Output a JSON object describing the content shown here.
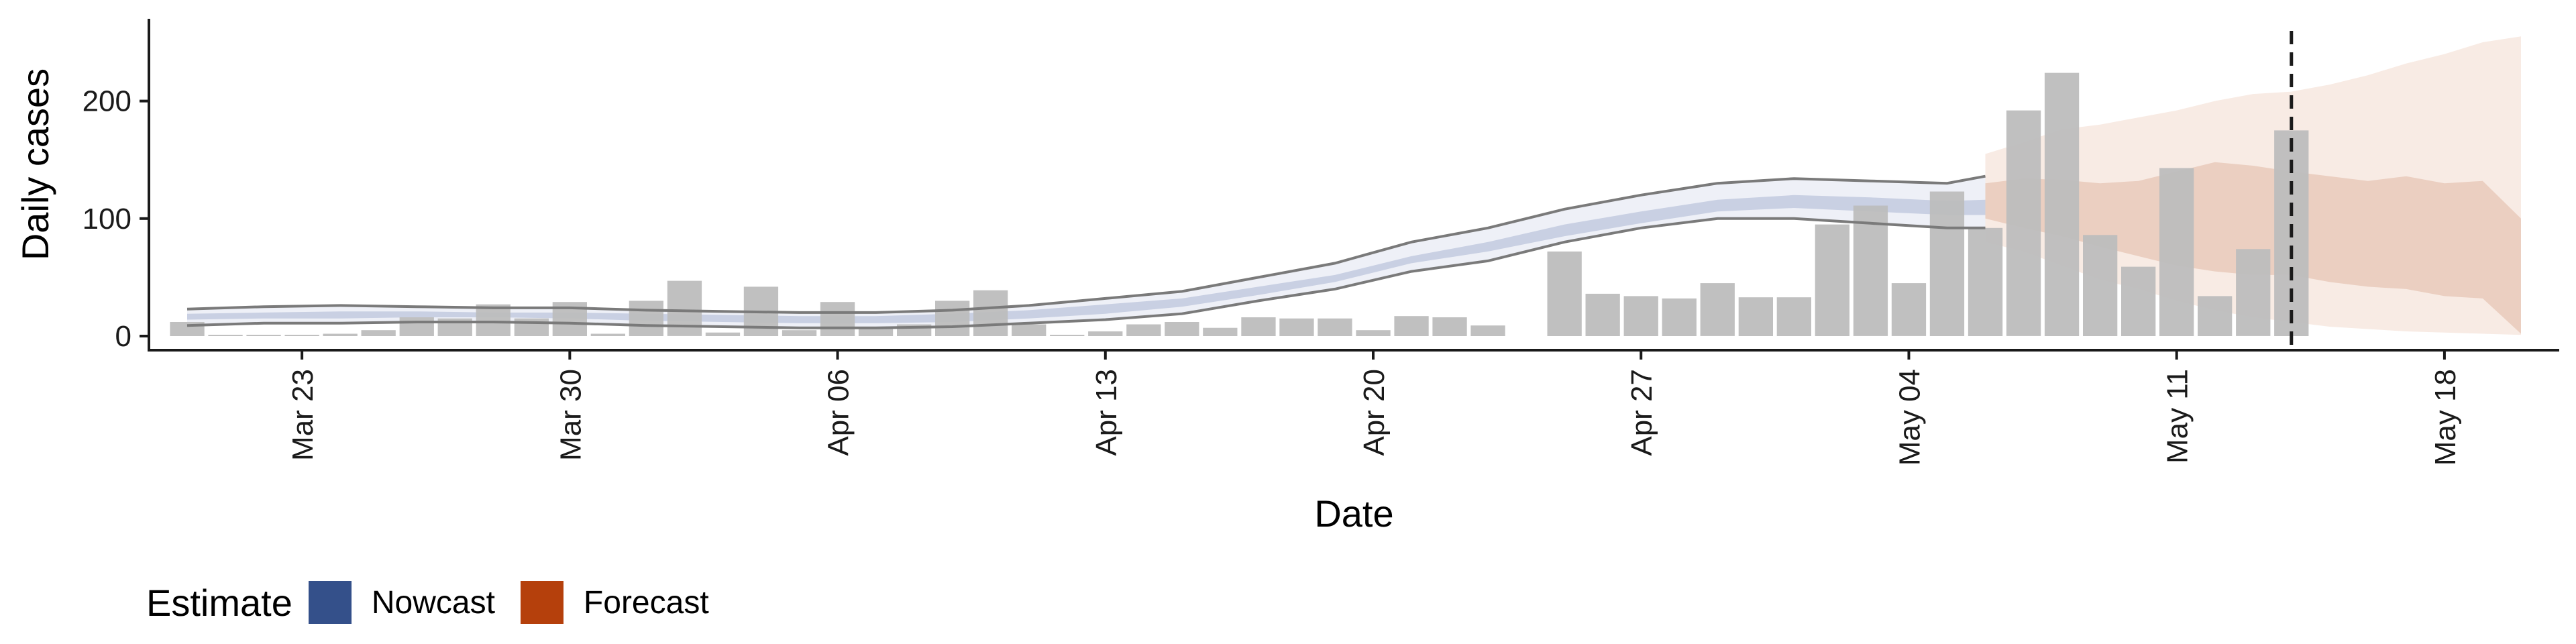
{
  "chart_data": {
    "type": "bar",
    "xlabel": "Date",
    "ylabel": "Daily cases",
    "ylim": [
      -12,
      270
    ],
    "yticks": [
      0,
      100,
      200
    ],
    "x_start": "2020-03-19",
    "x_end": "2020-05-21",
    "xticks": [
      {
        "date": "2020-03-23",
        "label": "Mar 23"
      },
      {
        "date": "2020-03-30",
        "label": "Mar 30"
      },
      {
        "date": "2020-04-06",
        "label": "Apr 06"
      },
      {
        "date": "2020-04-13",
        "label": "Apr 13"
      },
      {
        "date": "2020-04-20",
        "label": "Apr 20"
      },
      {
        "date": "2020-04-27",
        "label": "Apr 27"
      },
      {
        "date": "2020-05-04",
        "label": "May 04"
      },
      {
        "date": "2020-05-11",
        "label": "May 11"
      },
      {
        "date": "2020-05-18",
        "label": "May 18"
      }
    ],
    "reported_cases": [
      {
        "date": "2020-03-20",
        "value": 12
      },
      {
        "date": "2020-03-21",
        "value": 0
      },
      {
        "date": "2020-03-22",
        "value": 1
      },
      {
        "date": "2020-03-23",
        "value": 1
      },
      {
        "date": "2020-03-24",
        "value": 2
      },
      {
        "date": "2020-03-25",
        "value": 5
      },
      {
        "date": "2020-03-26",
        "value": 16
      },
      {
        "date": "2020-03-27",
        "value": 15
      },
      {
        "date": "2020-03-28",
        "value": 27
      },
      {
        "date": "2020-03-29",
        "value": 15
      },
      {
        "date": "2020-03-30",
        "value": 29
      },
      {
        "date": "2020-03-31",
        "value": 2
      },
      {
        "date": "2020-04-01",
        "value": 30
      },
      {
        "date": "2020-04-02",
        "value": 47
      },
      {
        "date": "2020-04-03",
        "value": 3
      },
      {
        "date": "2020-04-04",
        "value": 42
      },
      {
        "date": "2020-04-05",
        "value": 5
      },
      {
        "date": "2020-04-06",
        "value": 29
      },
      {
        "date": "2020-04-07",
        "value": 8
      },
      {
        "date": "2020-04-08",
        "value": 10
      },
      {
        "date": "2020-04-09",
        "value": 30
      },
      {
        "date": "2020-04-10",
        "value": 39
      },
      {
        "date": "2020-04-11",
        "value": 10
      },
      {
        "date": "2020-04-12",
        "value": 1
      },
      {
        "date": "2020-04-13",
        "value": 4
      },
      {
        "date": "2020-04-14",
        "value": 10
      },
      {
        "date": "2020-04-15",
        "value": 12
      },
      {
        "date": "2020-04-16",
        "value": 7
      },
      {
        "date": "2020-04-17",
        "value": 16
      },
      {
        "date": "2020-04-18",
        "value": 15
      },
      {
        "date": "2020-04-19",
        "value": 15
      },
      {
        "date": "2020-04-20",
        "value": 5
      },
      {
        "date": "2020-04-21",
        "value": 17
      },
      {
        "date": "2020-04-22",
        "value": 16
      },
      {
        "date": "2020-04-23",
        "value": 9
      },
      {
        "date": "2020-04-25",
        "value": 72
      },
      {
        "date": "2020-04-26",
        "value": 36
      },
      {
        "date": "2020-04-27",
        "value": 34
      },
      {
        "date": "2020-04-28",
        "value": 32
      },
      {
        "date": "2020-04-29",
        "value": 45
      },
      {
        "date": "2020-04-30",
        "value": 33
      },
      {
        "date": "2020-05-01",
        "value": 33
      },
      {
        "date": "2020-05-02",
        "value": 95
      },
      {
        "date": "2020-05-03",
        "value": 111
      },
      {
        "date": "2020-05-04",
        "value": 45
      },
      {
        "date": "2020-05-05",
        "value": 123
      },
      {
        "date": "2020-05-06",
        "value": 92
      },
      {
        "date": "2020-05-07",
        "value": 192
      },
      {
        "date": "2020-05-08",
        "value": 224
      },
      {
        "date": "2020-05-09",
        "value": 86
      },
      {
        "date": "2020-05-10",
        "value": 59
      },
      {
        "date": "2020-05-11",
        "value": 143
      },
      {
        "date": "2020-05-12",
        "value": 34
      },
      {
        "date": "2020-05-13",
        "value": 74
      },
      {
        "date": "2020-05-14",
        "value": 175
      }
    ],
    "nowcast": {
      "dates": [
        "2020-03-20",
        "2020-03-22",
        "2020-03-24",
        "2020-03-26",
        "2020-03-28",
        "2020-03-30",
        "2020-04-01",
        "2020-04-03",
        "2020-04-05",
        "2020-04-07",
        "2020-04-09",
        "2020-04-11",
        "2020-04-13",
        "2020-04-15",
        "2020-04-17",
        "2020-04-19",
        "2020-04-21",
        "2020-04-23",
        "2020-04-25",
        "2020-04-27",
        "2020-04-29",
        "2020-05-01",
        "2020-05-03",
        "2020-05-05",
        "2020-05-06"
      ],
      "outer_upper": [
        23,
        25,
        26,
        25,
        24,
        24,
        22,
        21,
        20,
        20,
        22,
        26,
        32,
        38,
        50,
        62,
        80,
        92,
        108,
        120,
        130,
        134,
        132,
        130,
        136
      ],
      "outer_lower": [
        9,
        11,
        11,
        12,
        12,
        11,
        9,
        8,
        7,
        7,
        8,
        11,
        14,
        19,
        30,
        40,
        55,
        64,
        80,
        92,
        100,
        100,
        96,
        92,
        92
      ],
      "inner_upper": [
        19,
        20,
        21,
        21,
        20,
        20,
        19,
        18,
        17,
        17,
        19,
        22,
        27,
        32,
        42,
        52,
        68,
        80,
        95,
        106,
        116,
        120,
        118,
        115,
        116
      ],
      "inner_lower": [
        14,
        15,
        15,
        16,
        16,
        15,
        13,
        12,
        11,
        11,
        12,
        15,
        19,
        25,
        35,
        46,
        62,
        72,
        85,
        96,
        106,
        109,
        106,
        103,
        103
      ]
    },
    "forecast": {
      "dates": [
        "2020-05-06",
        "2020-05-07",
        "2020-05-08",
        "2020-05-09",
        "2020-05-10",
        "2020-05-11",
        "2020-05-12",
        "2020-05-13",
        "2020-05-14",
        "2020-05-15",
        "2020-05-16",
        "2020-05-17",
        "2020-05-18",
        "2020-05-19",
        "2020-05-20"
      ],
      "outer_upper": [
        155,
        165,
        176,
        180,
        186,
        192,
        200,
        206,
        208,
        214,
        222,
        232,
        240,
        250,
        255
      ],
      "outer_lower": [
        80,
        72,
        60,
        48,
        40,
        30,
        22,
        16,
        12,
        8,
        6,
        4,
        3,
        2,
        1
      ],
      "inner_upper": [
        130,
        134,
        133,
        130,
        132,
        140,
        148,
        145,
        140,
        136,
        132,
        136,
        130,
        132,
        100
      ],
      "inner_lower": [
        100,
        92,
        85,
        76,
        68,
        60,
        55,
        52,
        52,
        46,
        42,
        40,
        34,
        32,
        2
      ]
    },
    "forecast_marker_date": "2020-05-14",
    "legend": {
      "title": "Estimate",
      "items": [
        {
          "label": "Nowcast",
          "color": "#34508a"
        },
        {
          "label": "Forecast",
          "color": "#b5400c"
        }
      ]
    },
    "colors": {
      "bar": "#bdbdbd",
      "nowcast_outer": "#eef0f7",
      "nowcast_inner": "#c9d0e3",
      "nowcast_line": "#7a7a7a",
      "forecast_outer": "#f8ebe4",
      "forecast_inner": "#ebcfc1"
    }
  }
}
